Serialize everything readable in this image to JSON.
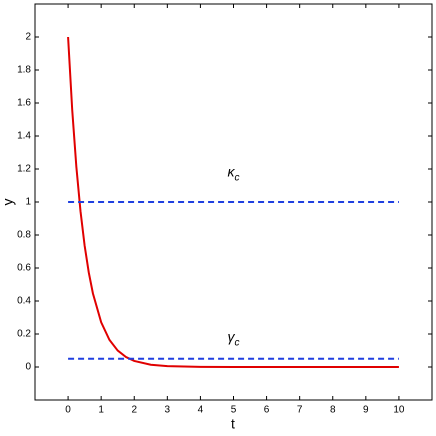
{
  "chart_data": {
    "type": "line",
    "x_label": "t",
    "y_label": "y",
    "xlim": [
      -1,
      11
    ],
    "ylim": [
      -0.2,
      2.2
    ],
    "xticks": [
      0,
      1,
      2,
      3,
      4,
      5,
      6,
      7,
      8,
      9,
      10
    ],
    "yticks": [
      0,
      0.2,
      0.4,
      0.6,
      0.8,
      1,
      1.2,
      1.4,
      1.6,
      1.8,
      2
    ],
    "series": [
      {
        "color": "#e00000",
        "dash": false,
        "x": [
          0,
          0.125,
          0.25,
          0.375,
          0.5,
          0.625,
          0.75,
          1,
          1.25,
          1.5,
          1.75,
          2,
          2.5,
          3,
          4,
          5,
          6,
          7,
          8,
          9,
          10
        ],
        "values": [
          2,
          1.5576,
          1.2131,
          0.9447,
          0.7358,
          0.573,
          0.4463,
          0.2707,
          0.1642,
          0.0996,
          0.0604,
          0.0366,
          0.0135,
          0.005,
          0.0007,
          0.0001,
          0,
          0,
          0,
          0,
          0
        ]
      },
      {
        "color": "#1f3fe0",
        "dash": true,
        "x": [
          0,
          10
        ],
        "values": [
          1,
          1
        ]
      },
      {
        "color": "#1f3fe0",
        "dash": true,
        "x": [
          0,
          10
        ],
        "values": [
          0.05,
          0.05
        ]
      }
    ],
    "annotations": [
      {
        "text": "κ",
        "subscript": "c",
        "x": 5,
        "y": 1.18
      },
      {
        "text": "γ",
        "subscript": "c",
        "x": 5,
        "y": 0.18
      }
    ]
  }
}
